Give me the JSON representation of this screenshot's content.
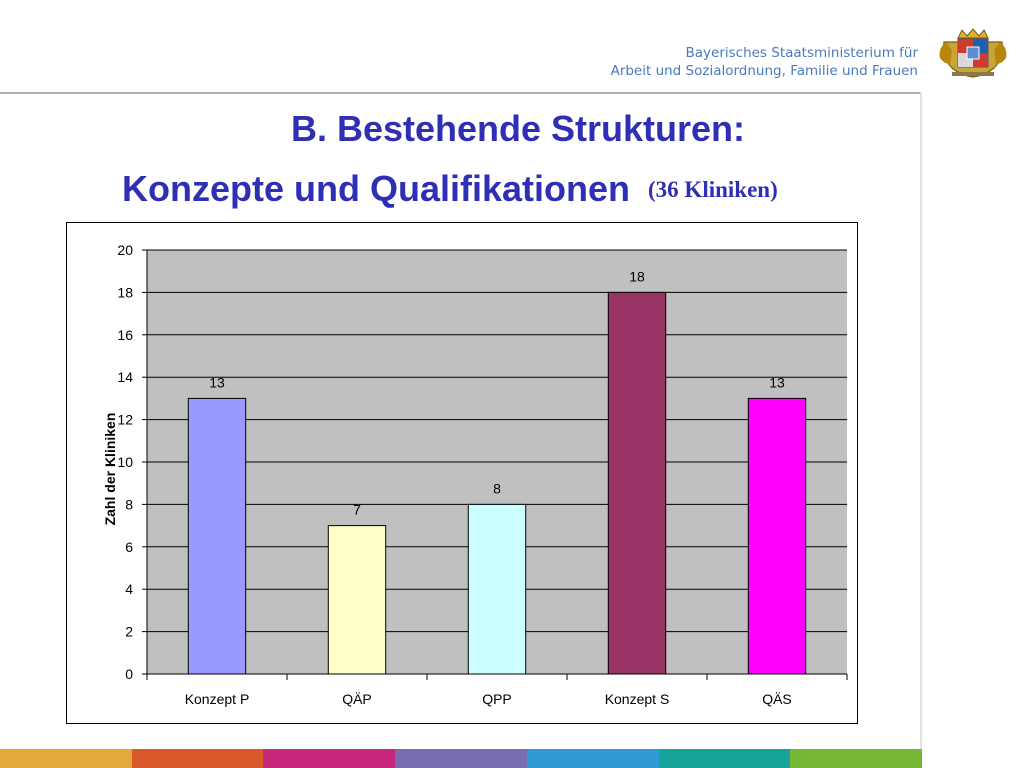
{
  "header": {
    "ministry_line1": "Bayerisches Staatsministerium für",
    "ministry_line2": "Arbeit und Sozialordnung, Familie und Frauen",
    "crest_icon": "bavarian-coat-of-arms",
    "ministry_color": "#4a7abf"
  },
  "slide": {
    "title_line1": "B. Bestehende Strukturen:",
    "title_line2": "Konzepte und Qualifikationen",
    "title_sub": "(36 Kliniken)",
    "title_color": "#2f2fb6"
  },
  "chart_data": {
    "type": "bar",
    "categories": [
      "Konzept P",
      "QÄP",
      "QPP",
      "Konzept S",
      "QÄS"
    ],
    "values": [
      13,
      7,
      8,
      18,
      13
    ],
    "colors": [
      "#9999ff",
      "#ffffcc",
      "#ccffff",
      "#993366",
      "#ff00ff"
    ],
    "data_labels": [
      "13",
      "7",
      "8",
      "18",
      "13"
    ],
    "ylabel": "Zahl der Kliniken",
    "xlabel": "",
    "ylim": [
      0,
      20
    ],
    "yticks": [
      "0",
      "2",
      "4",
      "6",
      "8",
      "10",
      "12",
      "14",
      "16",
      "18",
      "20"
    ],
    "grid": true,
    "plot_background": "#c0c0c0"
  },
  "footer_colors": [
    "#e5a83a",
    "#d85a2a",
    "#c8267b",
    "#7a6cb0",
    "#2f9bd6",
    "#16a39a",
    "#76b836"
  ]
}
